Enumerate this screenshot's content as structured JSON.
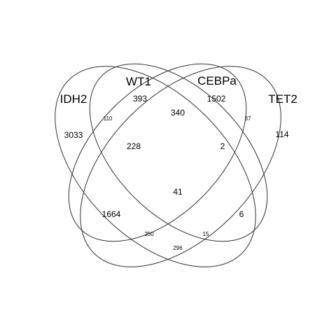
{
  "sets": [
    {
      "name": "IDH2"
    },
    {
      "name": "WT1"
    },
    {
      "name": "CEBPa"
    },
    {
      "name": "TET2"
    }
  ],
  "regions": {
    "idh2_only": "3033",
    "wt1_only": "393",
    "cebpa_only": "1502",
    "tet2_only": "114",
    "idh2_wt1": "110",
    "wt1_cebpa": "340",
    "cebpa_tet2": "37",
    "idh2_wt1_cebpa": "228",
    "wt1_cebpa_tet2": "2",
    "all_four": "41",
    "idh2_cebpa": "1664",
    "wt1_tet2": "6",
    "idh2_cebpa_tet2": "250",
    "idh2_wt1_tet2": "15",
    "idh2_tet2": "296"
  }
}
